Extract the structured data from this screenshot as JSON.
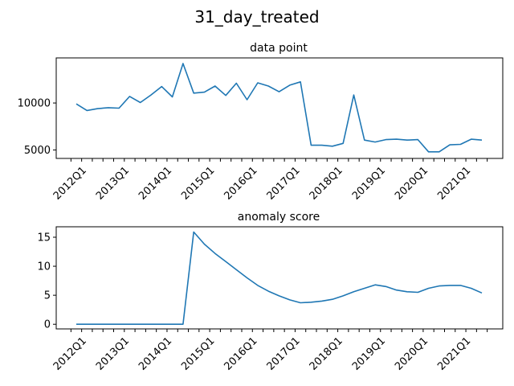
{
  "suptitle": "31_day_treated",
  "chart_data": [
    {
      "type": "line",
      "title": "data point",
      "xlabel": "",
      "ylabel": "",
      "x_count": 39,
      "xticks": [
        "2012Q1",
        "2013Q1",
        "2014Q1",
        "2015Q1",
        "2016Q1",
        "2017Q1",
        "2018Q1",
        "2019Q1",
        "2020Q1",
        "2021Q1"
      ],
      "yticks": [
        5000,
        10000
      ],
      "ylim": [
        4100,
        14800
      ],
      "values": [
        9900,
        9200,
        9400,
        9500,
        9450,
        10700,
        10050,
        10850,
        11750,
        10650,
        14200,
        11050,
        11150,
        11800,
        10800,
        12100,
        10350,
        12150,
        11800,
        11200,
        11900,
        12250,
        5500,
        5500,
        5400,
        5700,
        10850,
        6050,
        5850,
        6100,
        6150,
        6050,
        6100,
        4800,
        4800,
        5550,
        5600,
        6150,
        6050
      ],
      "color": "#1f77b4"
    },
    {
      "type": "line",
      "title": "anomaly score",
      "xlabel": "",
      "ylabel": "",
      "x_count": 39,
      "xticks": [
        "2012Q1",
        "2013Q1",
        "2014Q1",
        "2015Q1",
        "2016Q1",
        "2017Q1",
        "2018Q1",
        "2019Q1",
        "2020Q1",
        "2021Q1"
      ],
      "yticks": [
        0,
        5,
        10,
        15
      ],
      "ylim": [
        -0.8,
        16.8
      ],
      "values": [
        0,
        0,
        0,
        0,
        0,
        0,
        0,
        0,
        0,
        0,
        0,
        15.9,
        13.8,
        12.2,
        10.8,
        9.4,
        8.0,
        6.7,
        5.7,
        4.9,
        4.2,
        3.7,
        3.8,
        4.0,
        4.3,
        4.9,
        5.6,
        6.2,
        6.8,
        6.5,
        5.9,
        5.6,
        5.5,
        6.2,
        6.6,
        6.7,
        6.7,
        6.2,
        5.4
      ],
      "color": "#1f77b4"
    }
  ]
}
